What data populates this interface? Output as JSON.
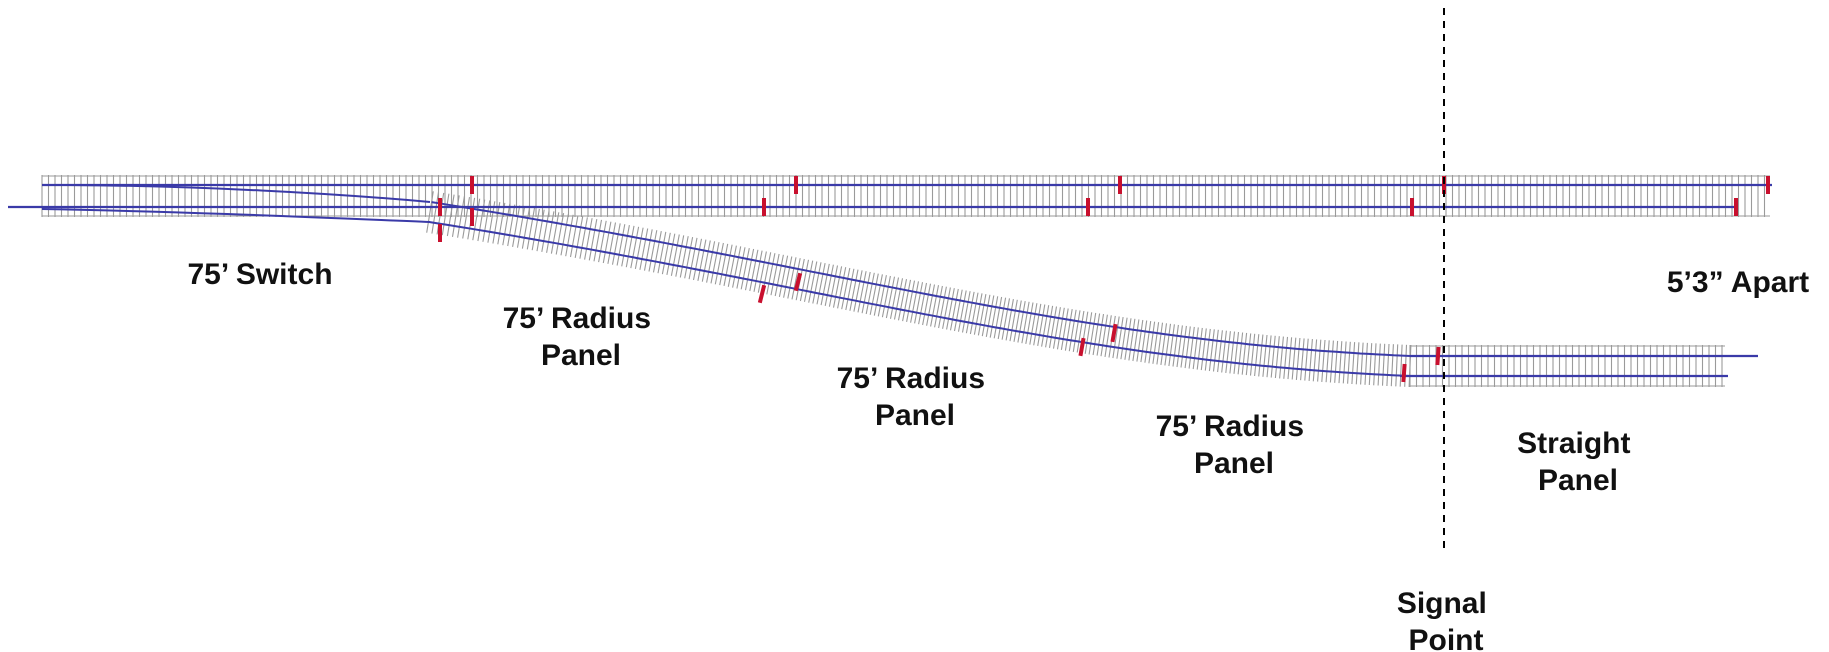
{
  "colors": {
    "rail": "#3a3aa8",
    "sleeper": "#9a9a9a",
    "joint": "#c8102e",
    "divider": "#000000",
    "label": "#111111"
  },
  "labels": {
    "switch": "75’ Switch",
    "radius_panel_1": [
      "75’ Radius",
      "Panel"
    ],
    "radius_panel_2": [
      "75’ Radius",
      "Panel"
    ],
    "radius_panel_3": [
      "75’ Radius",
      "Panel"
    ],
    "straight_panel": [
      "Straight",
      "Panel"
    ],
    "apart": "5’3” Apart",
    "signal_point": [
      "Signal",
      "Point"
    ]
  }
}
